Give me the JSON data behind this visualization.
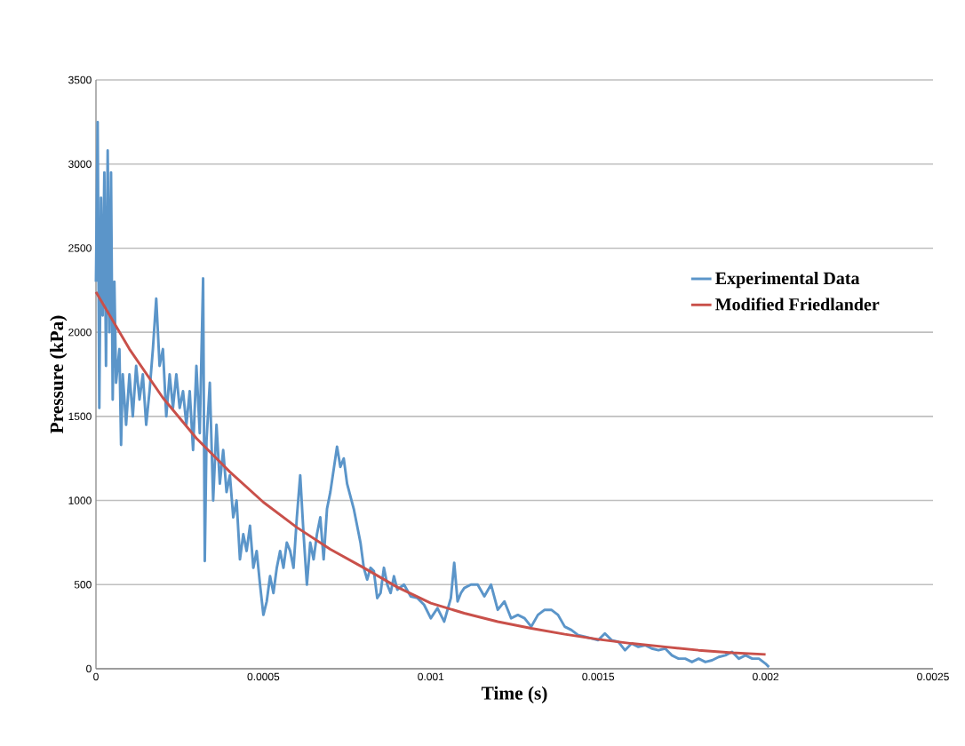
{
  "chart_data": {
    "type": "line",
    "xlabel": "Time (s)",
    "ylabel": "Pressure (kPa)",
    "xlim": [
      0,
      0.0025
    ],
    "ylim": [
      0,
      3500
    ],
    "xticks": [
      0,
      0.0005,
      0.001,
      0.0015,
      0.002,
      0.0025
    ],
    "yticks": [
      0,
      500,
      1000,
      1500,
      2000,
      2500,
      3000,
      3500
    ],
    "grid": "y",
    "legend": "right",
    "marker": "none",
    "line_style": "solid",
    "series": [
      {
        "name": "Experimental Data",
        "color": "#5b95c9",
        "x": [
          0,
          5e-06,
          1e-05,
          1.5e-05,
          2e-05,
          2.5e-05,
          3e-05,
          3.5e-05,
          4e-05,
          4.5e-05,
          5e-05,
          5.5e-05,
          6e-05,
          7e-05,
          7.5e-05,
          8e-05,
          9e-05,
          0.0001,
          0.00011,
          0.00012,
          0.00013,
          0.00014,
          0.00015,
          0.00016,
          0.00017,
          0.00018,
          0.00019,
          0.0002,
          0.00021,
          0.00022,
          0.00023,
          0.00024,
          0.00025,
          0.00026,
          0.00027,
          0.00028,
          0.00029,
          0.0003,
          0.00031,
          0.00032,
          0.000325,
          0.00033,
          0.00034,
          0.00035,
          0.00036,
          0.00037,
          0.00038,
          0.00039,
          0.0004,
          0.00041,
          0.00042,
          0.00043,
          0.00044,
          0.00045,
          0.00046,
          0.00047,
          0.00048,
          0.00049,
          0.0005,
          0.00051,
          0.00052,
          0.00053,
          0.00054,
          0.00055,
          0.00056,
          0.00057,
          0.00058,
          0.00059,
          0.0006,
          0.00061,
          0.00062,
          0.00063,
          0.00064,
          0.00065,
          0.00066,
          0.00067,
          0.00068,
          0.00069,
          0.0007,
          0.00072,
          0.00073,
          0.00074,
          0.00075,
          0.00077,
          0.00079,
          0.0008,
          0.00081,
          0.00082,
          0.00083,
          0.00084,
          0.00085,
          0.00086,
          0.00087,
          0.00088,
          0.00089,
          0.0009,
          0.00092,
          0.00094,
          0.00096,
          0.00098,
          0.001,
          0.00102,
          0.00104,
          0.00106,
          0.00107,
          0.00108,
          0.00109,
          0.0011,
          0.00112,
          0.00114,
          0.00116,
          0.00118,
          0.0012,
          0.00122,
          0.00124,
          0.00126,
          0.00128,
          0.0013,
          0.00132,
          0.00134,
          0.00136,
          0.00138,
          0.0014,
          0.00142,
          0.00144,
          0.00146,
          0.00148,
          0.0015,
          0.00152,
          0.00154,
          0.00156,
          0.00158,
          0.0016,
          0.00162,
          0.00164,
          0.00166,
          0.00168,
          0.0017,
          0.00172,
          0.00174,
          0.00176,
          0.00178,
          0.0018,
          0.00182,
          0.00184,
          0.00186,
          0.00188,
          0.0019,
          0.00192,
          0.00194,
          0.00196,
          0.00198,
          0.002,
          0.00201
        ],
        "values": [
          2300,
          3250,
          1550,
          2800,
          2100,
          2950,
          1800,
          3080,
          2000,
          2950,
          1600,
          2300,
          1700,
          1900,
          1330,
          1750,
          1450,
          1750,
          1500,
          1800,
          1600,
          1750,
          1450,
          1650,
          1900,
          2200,
          1800,
          1900,
          1500,
          1750,
          1550,
          1750,
          1550,
          1650,
          1450,
          1650,
          1300,
          1800,
          1400,
          2320,
          640,
          1350,
          1700,
          1000,
          1450,
          1100,
          1300,
          1050,
          1150,
          900,
          1000,
          650,
          800,
          700,
          850,
          600,
          700,
          500,
          320,
          400,
          550,
          450,
          600,
          700,
          600,
          750,
          700,
          600,
          900,
          1150,
          800,
          500,
          750,
          650,
          800,
          900,
          650,
          950,
          1050,
          1320,
          1200,
          1250,
          1100,
          950,
          750,
          600,
          530,
          600,
          580,
          420,
          450,
          600,
          500,
          450,
          550,
          470,
          500,
          430,
          420,
          380,
          300,
          360,
          280,
          420,
          630,
          400,
          450,
          480,
          500,
          500,
          430,
          500,
          350,
          400,
          300,
          320,
          300,
          250,
          320,
          350,
          350,
          320,
          250,
          230,
          200,
          190,
          180,
          170,
          210,
          170,
          160,
          110,
          150,
          130,
          140,
          120,
          110,
          120,
          80,
          60,
          60,
          40,
          60,
          40,
          50,
          70,
          80,
          100,
          60,
          80,
          60,
          60,
          30,
          10
        ]
      },
      {
        "name": "Modified Friedlander",
        "color": "#c9504a",
        "x": [
          0,
          0.0001,
          0.0002,
          0.0003,
          0.0004,
          0.0005,
          0.0006,
          0.0007,
          0.0008,
          0.0009,
          0.001,
          0.0011,
          0.0012,
          0.0013,
          0.0014,
          0.0015,
          0.0016,
          0.0017,
          0.0018,
          0.0019,
          0.002
        ],
        "values": [
          2240,
          1900,
          1610,
          1370,
          1170,
          990,
          840,
          710,
          600,
          485,
          390,
          330,
          280,
          240,
          205,
          175,
          150,
          130,
          110,
          95,
          85
        ]
      }
    ]
  }
}
